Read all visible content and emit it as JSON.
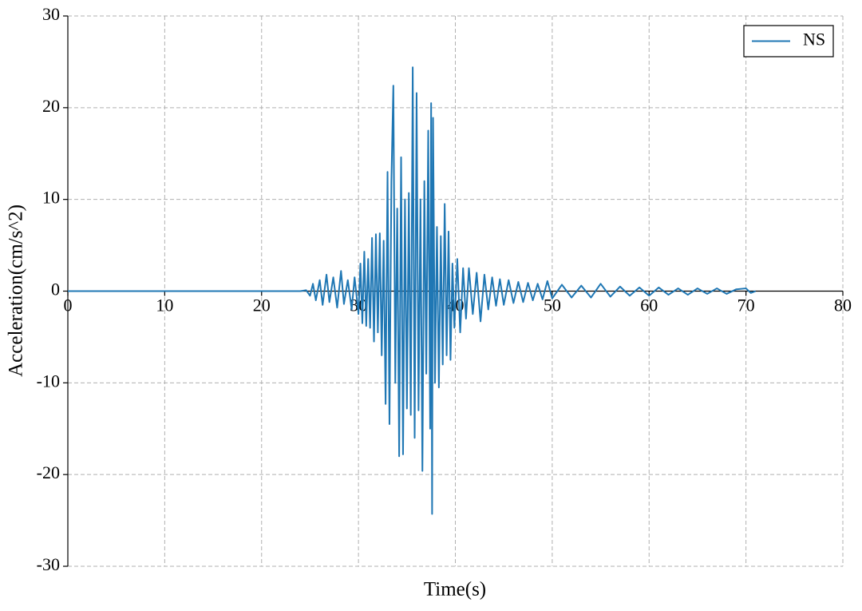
{
  "chart_data": {
    "type": "line",
    "xlabel": "Time(s)",
    "ylabel": "Acceleration(cm/s^2)",
    "x": [
      0,
      24,
      24.6,
      25,
      25.3,
      25.6,
      26,
      26.3,
      26.7,
      27,
      27.4,
      27.8,
      28.2,
      28.5,
      28.9,
      29.3,
      29.6,
      30,
      30.2,
      30.4,
      30.6,
      30.8,
      31,
      31.2,
      31.4,
      31.6,
      31.8,
      32,
      32.2,
      32.4,
      32.6,
      32.8,
      33,
      33.2,
      33.4,
      33.6,
      33.8,
      34,
      34.2,
      34.4,
      34.6,
      34.8,
      35,
      35.2,
      35.4,
      35.6,
      35.8,
      36,
      36.2,
      36.4,
      36.6,
      36.8,
      37,
      37.2,
      37.4,
      37.5,
      37.6,
      37.7,
      37.9,
      38.1,
      38.3,
      38.5,
      38.7,
      38.9,
      39.1,
      39.3,
      39.5,
      39.7,
      39.9,
      40.2,
      40.5,
      40.8,
      41.1,
      41.4,
      41.8,
      42.2,
      42.6,
      43,
      43.4,
      43.8,
      44.2,
      44.6,
      45,
      45.5,
      46,
      46.5,
      47,
      47.5,
      48,
      48.5,
      49,
      49.5,
      50,
      51,
      52,
      53,
      54,
      55,
      56,
      57,
      58,
      59,
      60,
      61,
      62,
      63,
      64,
      65,
      66,
      67,
      68,
      69,
      70,
      70.5,
      71
    ],
    "series": [
      {
        "name": "NS",
        "color": "#1f77b4",
        "values": [
          0,
          0,
          0.1,
          -0.5,
          0.8,
          -1,
          1.2,
          -1.5,
          1.8,
          -1.2,
          1.5,
          -1.8,
          2.2,
          -1.4,
          1.2,
          -2,
          1.5,
          -2.5,
          3,
          -3.5,
          4.3,
          -3.8,
          3.5,
          -4,
          5.8,
          -5.5,
          6.2,
          -4.5,
          6.3,
          -7,
          5.5,
          -12.3,
          13,
          -14.5,
          12,
          22.4,
          -10,
          9,
          -18,
          14.6,
          -17.8,
          10,
          -12.8,
          10.7,
          -13.5,
          24.4,
          -16,
          21.6,
          -13,
          10,
          -19.6,
          12,
          -9,
          17.5,
          -15,
          20.5,
          -24.3,
          18.9,
          -10,
          7,
          -10.5,
          6,
          -8,
          9.5,
          -7,
          6.5,
          -7.5,
          3,
          -4,
          3.5,
          -4.5,
          2.5,
          -3,
          2.5,
          -2.5,
          2,
          -3.3,
          1.8,
          -2,
          1.5,
          -1.6,
          1.3,
          -1.5,
          1.2,
          -1.3,
          1,
          -1.2,
          0.9,
          -1,
          0.8,
          -0.9,
          1.1,
          -0.8,
          0.7,
          -0.7,
          0.6,
          -0.7,
          0.8,
          -0.6,
          0.5,
          -0.5,
          0.4,
          -0.5,
          0.4,
          -0.4,
          0.3,
          -0.4,
          0.3,
          -0.3,
          0.3,
          -0.3,
          0.2,
          0.3,
          -0.2,
          0
        ]
      }
    ],
    "xlim": [
      0,
      80
    ],
    "ylim": [
      -30,
      30
    ],
    "xticks": [
      0,
      10,
      20,
      30,
      40,
      50,
      60,
      70,
      80
    ],
    "yticks": [
      -30,
      -20,
      -10,
      0,
      10,
      20,
      30
    ],
    "grid": true,
    "legend": "upper right"
  }
}
